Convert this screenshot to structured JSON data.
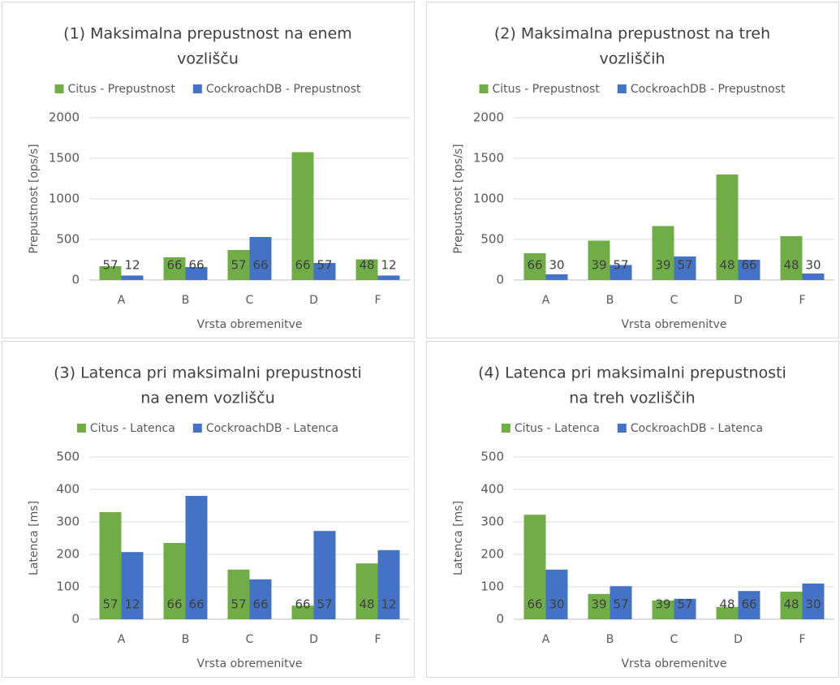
{
  "chart_data": [
    {
      "type": "bar",
      "title": [
        "(1) Maksimalna prepustnost na enem",
        "vozlišču"
      ],
      "categories": [
        "A",
        "B",
        "C",
        "D",
        "F"
      ],
      "series": [
        {
          "name": "Citus - Prepustnost",
          "color": "#70ad47",
          "values": [
            170,
            280,
            370,
            1575,
            255
          ],
          "point_labels": [
            57,
            66,
            57,
            66,
            48
          ]
        },
        {
          "name": "CockroachDB - Prepustnost",
          "color": "#4472c4",
          "values": [
            55,
            160,
            530,
            210,
            55
          ],
          "point_labels": [
            12,
            66,
            66,
            57,
            12
          ]
        }
      ],
      "ylim": [
        0,
        2000
      ],
      "yticks": [
        0,
        500,
        1000,
        1500,
        2000
      ],
      "grid": true,
      "xlabel": "Vrsta obremenitve",
      "ylabel": "Prepustnost [ops/s]",
      "legend": "top"
    },
    {
      "type": "bar",
      "title": [
        "(2) Maksimalna prepustnost na treh",
        "vozliščih"
      ],
      "categories": [
        "A",
        "B",
        "C",
        "D",
        "F"
      ],
      "series": [
        {
          "name": "Citus - Prepustnost",
          "color": "#70ad47",
          "values": [
            330,
            485,
            665,
            1300,
            540
          ],
          "point_labels": [
            66,
            39,
            39,
            48,
            48
          ]
        },
        {
          "name": "CockroachDB - Prepustnost",
          "color": "#4472c4",
          "values": [
            70,
            185,
            290,
            250,
            80
          ],
          "point_labels": [
            30,
            57,
            57,
            66,
            30
          ]
        }
      ],
      "ylim": [
        0,
        2000
      ],
      "yticks": [
        0,
        500,
        1000,
        1500,
        2000
      ],
      "grid": true,
      "xlabel": "Vrsta obremenitve",
      "ylabel": "Prepustnost [ops/s]",
      "legend": "top"
    },
    {
      "type": "bar",
      "title": [
        "(3) Latenca pri maksimalni prepustnosti",
        "na enem vozlišču"
      ],
      "categories": [
        "A",
        "B",
        "C",
        "D",
        "F"
      ],
      "series": [
        {
          "name": "Citus - Latenca",
          "color": "#70ad47",
          "values": [
            330,
            235,
            153,
            42,
            172
          ],
          "point_labels": [
            57,
            66,
            57,
            66,
            48
          ]
        },
        {
          "name": "CockroachDB - Latenca",
          "color": "#4472c4",
          "values": [
            207,
            380,
            123,
            272,
            213
          ],
          "point_labels": [
            12,
            66,
            66,
            57,
            12
          ]
        }
      ],
      "ylim": [
        0,
        500
      ],
      "yticks": [
        0,
        100,
        200,
        300,
        400,
        500
      ],
      "grid": true,
      "xlabel": "Vrsta obremenitve",
      "ylabel": "Latenca [ms]",
      "legend": "top"
    },
    {
      "type": "bar",
      "title": [
        "(4) Latenca pri maksimalni prepustnosti",
        "na treh vozliščih"
      ],
      "categories": [
        "A",
        "B",
        "C",
        "D",
        "F"
      ],
      "series": [
        {
          "name": "Citus - Latenca",
          "color": "#70ad47",
          "values": [
            322,
            78,
            58,
            38,
            85
          ],
          "point_labels": [
            66,
            39,
            39,
            48,
            48
          ]
        },
        {
          "name": "CockroachDB - Latenca",
          "color": "#4472c4",
          "values": [
            153,
            102,
            63,
            87,
            110
          ],
          "point_labels": [
            30,
            57,
            57,
            66,
            30
          ]
        }
      ],
      "ylim": [
        0,
        500
      ],
      "yticks": [
        0,
        100,
        200,
        300,
        400,
        500
      ],
      "grid": true,
      "xlabel": "Vrsta obremenitve",
      "ylabel": "Latenca [ms]",
      "legend": "top"
    }
  ]
}
